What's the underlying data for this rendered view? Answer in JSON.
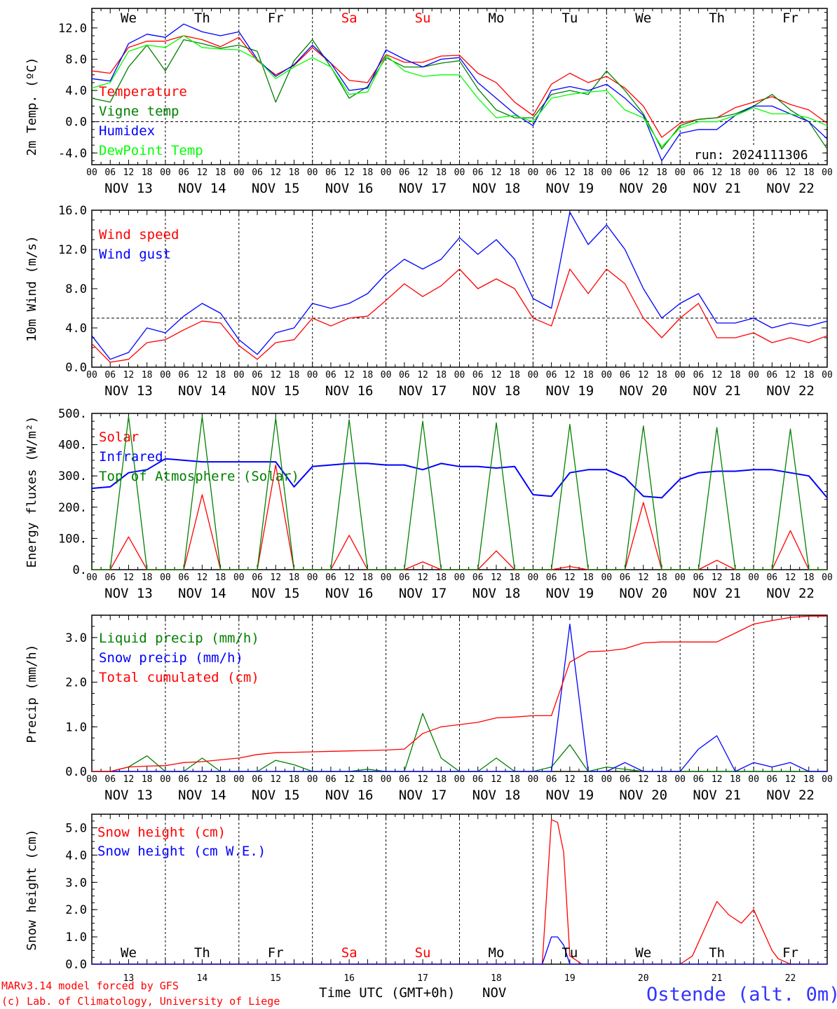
{
  "days": [
    "We",
    "Th",
    "Fr",
    "Sa",
    "Su",
    "Mo",
    "Tu",
    "We",
    "Th",
    "Fr"
  ],
  "day_colors": [
    "#000000",
    "#000000",
    "#000000",
    "#ff0000",
    "#ff0000",
    "#000000",
    "#000000",
    "#000000",
    "#000000",
    "#000000"
  ],
  "date_labels": [
    "NOV 13",
    "NOV 14",
    "NOV 15",
    "NOV 16",
    "NOV 17",
    "NOV 18",
    "NOV 19",
    "NOV 20",
    "NOV 21",
    "NOV 22"
  ],
  "day_numbers": [
    "13",
    "14",
    "15",
    "16",
    "17",
    "18",
    "19",
    "20",
    "21",
    "22"
  ],
  "hour_ticks": [
    "00",
    "06",
    "12",
    "18"
  ],
  "footer": {
    "credit_line1": "MARv3.14 model forced by GFS",
    "credit_line2": "(c) Lab. of Climatology, University of Liege",
    "time_axis": "Time UTC (GMT+0h)",
    "month": "NOV",
    "station": "Ostende (alt. 0m)"
  },
  "chart_data": [
    {
      "type": "line",
      "ylabel": "2m Temp. (ºC)",
      "ylim": [
        -5.5,
        14.5
      ],
      "yticks": [
        "12.0",
        "8.0",
        "4.0",
        "0.0",
        "-4.0"
      ],
      "ytick_values": [
        12,
        8,
        4,
        0,
        -4
      ],
      "reference_line": 0,
      "annotation": "run: 2024111306",
      "x_hours_from_nov13_00": [
        0,
        6,
        12,
        18,
        24,
        30,
        36,
        42,
        48,
        54,
        60,
        66,
        72,
        78,
        84,
        90,
        96,
        102,
        108,
        114,
        120,
        126,
        132,
        138,
        144,
        150,
        156,
        162,
        168,
        174,
        180,
        186,
        192,
        198,
        204,
        210,
        216,
        222,
        228,
        234,
        240
      ],
      "series": [
        {
          "name": "Temperature",
          "color": "#ff0000",
          "values": [
            6.5,
            6.2,
            9.5,
            10.3,
            10.3,
            11.0,
            10.5,
            9.6,
            10.8,
            7.8,
            6.0,
            7.2,
            9.5,
            7.5,
            5.3,
            5.0,
            8.6,
            7.6,
            7.6,
            8.4,
            8.5,
            6.2,
            5.0,
            2.5,
            0.8,
            4.8,
            6.2,
            5.0,
            5.8,
            4.3,
            2.0,
            -2.0,
            -0.2,
            0.3,
            0.5,
            1.8,
            2.5,
            3.2,
            2.2,
            1.5,
            -0.2
          ]
        },
        {
          "name": "Vigne temp",
          "color": "#008000",
          "values": [
            3.0,
            2.5,
            7.0,
            9.8,
            6.5,
            10.5,
            10.0,
            9.4,
            9.8,
            9.0,
            2.5,
            7.8,
            10.5,
            7.0,
            3.0,
            4.5,
            8.2,
            7.0,
            7.0,
            7.5,
            7.8,
            4.2,
            1.5,
            0.5,
            0.5,
            3.5,
            4.0,
            3.5,
            6.5,
            4.0,
            1.0,
            -3.5,
            -0.5,
            0.3,
            0.5,
            1.0,
            2.0,
            3.5,
            1.5,
            0.0,
            -3.5
          ]
        },
        {
          "name": "Humidex",
          "color": "#0000ff",
          "values": [
            5.5,
            5.2,
            10.0,
            11.2,
            10.8,
            12.5,
            11.5,
            11.0,
            11.5,
            8.0,
            5.8,
            7.3,
            9.8,
            7.5,
            4.0,
            4.3,
            9.2,
            8.0,
            7.0,
            8.0,
            8.2,
            5.0,
            3.0,
            1.0,
            -0.5,
            4.0,
            4.5,
            4.0,
            4.8,
            3.0,
            0.8,
            -5.0,
            -1.5,
            -1.0,
            -1.0,
            0.8,
            2.0,
            2.0,
            1.0,
            0.0,
            -2.2
          ]
        },
        {
          "name": "DewPoint Temp",
          "color": "#00ff00",
          "values": [
            4.3,
            5.0,
            9.0,
            9.8,
            9.5,
            11.0,
            9.5,
            9.3,
            9.2,
            8.0,
            5.5,
            7.0,
            8.2,
            7.0,
            3.5,
            3.8,
            8.5,
            6.5,
            5.8,
            6.0,
            6.0,
            3.0,
            0.5,
            0.8,
            0.0,
            3.0,
            3.5,
            3.8,
            4.0,
            1.5,
            0.5,
            -3.2,
            -0.8,
            0.0,
            0.0,
            0.8,
            1.8,
            1.0,
            1.0,
            0.5,
            -0.5
          ]
        }
      ]
    },
    {
      "type": "line",
      "ylabel": "10m Wind (m/s)",
      "ylim": [
        0,
        16
      ],
      "yticks": [
        "16.0",
        "12.0",
        "8.0",
        "4.0",
        "0.0"
      ],
      "ytick_values": [
        16,
        12,
        8,
        4,
        0
      ],
      "reference_line": 5,
      "x_hours_from_nov13_00": [
        0,
        6,
        12,
        18,
        24,
        30,
        36,
        42,
        48,
        54,
        60,
        66,
        72,
        78,
        84,
        90,
        96,
        102,
        108,
        114,
        120,
        126,
        132,
        138,
        144,
        150,
        156,
        162,
        168,
        174,
        180,
        186,
        192,
        198,
        204,
        210,
        216,
        222,
        228,
        234,
        240
      ],
      "series": [
        {
          "name": "Wind speed",
          "color": "#ff0000",
          "values": [
            2.4,
            0.5,
            0.8,
            2.5,
            2.8,
            3.8,
            4.7,
            4.5,
            2.2,
            0.8,
            2.5,
            2.8,
            5.0,
            4.2,
            5.0,
            5.2,
            6.8,
            8.5,
            7.2,
            8.3,
            10.0,
            8.0,
            9.0,
            8.0,
            5.0,
            4.2,
            10.0,
            7.5,
            10.0,
            8.5,
            5.0,
            3.0,
            5.0,
            6.5,
            3.0,
            3.0,
            3.5,
            2.5,
            3.0,
            2.5,
            3.2
          ]
        },
        {
          "name": "Wind gust",
          "color": "#0000ff",
          "values": [
            3.2,
            0.8,
            1.5,
            4.0,
            3.5,
            5.2,
            6.5,
            5.5,
            2.8,
            1.3,
            3.5,
            4.0,
            6.5,
            6.0,
            6.5,
            7.5,
            9.5,
            11.0,
            10.0,
            11.0,
            13.2,
            11.5,
            13.0,
            11.0,
            7.0,
            6.0,
            15.8,
            12.5,
            14.5,
            12.0,
            8.0,
            5.0,
            6.5,
            7.5,
            4.5,
            4.5,
            5.0,
            4.0,
            4.5,
            4.2,
            4.7
          ]
        }
      ]
    },
    {
      "type": "line",
      "ylabel": "Energy fluxes (W/m²)",
      "ylim": [
        0,
        500
      ],
      "yticks": [
        "500.",
        "400.",
        "300.",
        "200.",
        "100.",
        "0."
      ],
      "ytick_values": [
        500,
        400,
        300,
        200,
        100,
        0
      ],
      "x_hours_from_nov13_00": [
        0,
        6,
        12,
        18,
        24,
        30,
        36,
        42,
        48,
        54,
        60,
        66,
        72,
        78,
        84,
        90,
        96,
        102,
        108,
        114,
        120,
        126,
        132,
        138,
        144,
        150,
        156,
        162,
        168,
        174,
        180,
        186,
        192,
        198,
        204,
        210,
        216,
        222,
        228,
        234,
        240
      ],
      "series": [
        {
          "name": "Solar",
          "color": "#ff0000",
          "values": [
            0,
            0,
            105,
            0,
            0,
            0,
            240,
            0,
            0,
            0,
            335,
            0,
            0,
            0,
            110,
            0,
            0,
            0,
            25,
            0,
            0,
            0,
            60,
            0,
            0,
            0,
            10,
            0,
            0,
            0,
            215,
            0,
            0,
            0,
            30,
            0,
            0,
            0,
            125,
            0,
            0
          ]
        },
        {
          "name": "Infrared",
          "color": "#0000ff",
          "values": [
            260,
            265,
            310,
            320,
            355,
            350,
            345,
            345,
            345,
            345,
            345,
            265,
            330,
            335,
            340,
            340,
            335,
            335,
            320,
            340,
            330,
            330,
            325,
            330,
            240,
            235,
            310,
            320,
            320,
            295,
            235,
            230,
            290,
            310,
            315,
            315,
            320,
            320,
            310,
            300,
            230
          ]
        },
        {
          "name": "Top of Atmosphere (Solar)",
          "color": "#008000",
          "values": [
            0,
            0,
            490,
            0,
            0,
            0,
            490,
            0,
            0,
            0,
            485,
            0,
            0,
            0,
            480,
            0,
            0,
            0,
            475,
            0,
            0,
            0,
            470,
            0,
            0,
            0,
            465,
            0,
            0,
            0,
            460,
            0,
            0,
            0,
            455,
            0,
            0,
            0,
            450,
            0,
            0
          ]
        }
      ]
    },
    {
      "type": "line",
      "ylabel": "Precip (mm/h)",
      "ylim": [
        0,
        3.5
      ],
      "yticks": [
        "3.0",
        "2.0",
        "1.0",
        "0.0"
      ],
      "ytick_values": [
        3,
        2,
        1,
        0
      ],
      "x_hours_from_nov13_00": [
        0,
        6,
        12,
        18,
        24,
        30,
        36,
        42,
        48,
        54,
        60,
        66,
        72,
        78,
        84,
        90,
        96,
        102,
        108,
        114,
        120,
        126,
        132,
        138,
        144,
        150,
        156,
        162,
        168,
        174,
        180,
        186,
        192,
        198,
        204,
        210,
        216,
        222,
        228,
        234,
        240
      ],
      "series": [
        {
          "name": "Liquid precip (mm/h)",
          "color": "#008000",
          "values": [
            0,
            0,
            0.1,
            0.35,
            0,
            0,
            0.3,
            0,
            0,
            0,
            0.25,
            0.15,
            0,
            0,
            0,
            0.05,
            0,
            0,
            1.3,
            0.3,
            0,
            0,
            0.3,
            0,
            0,
            0.1,
            0.6,
            0,
            0.1,
            0.05,
            0,
            0,
            0,
            0,
            0,
            0,
            0,
            0,
            0,
            0,
            0
          ]
        },
        {
          "name": "Snow precip (mm/h)",
          "color": "#0000ff",
          "values": [
            0,
            0,
            0,
            0,
            0,
            0,
            0,
            0,
            0,
            0,
            0,
            0,
            0,
            0,
            0,
            0,
            0,
            0,
            0,
            0,
            0,
            0,
            0,
            0,
            0,
            0,
            3.3,
            0,
            0,
            0.2,
            0,
            0,
            0,
            0.5,
            0.8,
            0,
            0.2,
            0.1,
            0.2,
            0,
            0
          ]
        },
        {
          "name": "Total cumulated (cm)",
          "color": "#ff0000",
          "values": [
            0,
            0,
            0.1,
            0.12,
            0.13,
            0.2,
            0.22,
            0.26,
            0.3,
            0.38,
            0.42,
            0.43,
            0.44,
            0.45,
            0.46,
            0.47,
            0.48,
            0.5,
            0.85,
            1.0,
            1.05,
            1.1,
            1.2,
            1.22,
            1.25,
            1.25,
            2.45,
            2.68,
            2.7,
            2.75,
            2.88,
            2.9,
            2.9,
            2.9,
            2.9,
            3.1,
            3.3,
            3.38,
            3.45,
            3.48,
            3.48
          ]
        }
      ]
    },
    {
      "type": "line",
      "ylabel": "Snow height (cm)",
      "ylim": [
        0,
        5.5
      ],
      "yticks": [
        "5.0",
        "4.0",
        "3.0",
        "2.0",
        "1.0",
        "0.0"
      ],
      "ytick_values": [
        5,
        4,
        3,
        2,
        1,
        0
      ],
      "x_hours_from_nov13_00": [
        0,
        24,
        48,
        72,
        96,
        120,
        140,
        144,
        147,
        150,
        152,
        154,
        156,
        160,
        168,
        176,
        192,
        196,
        200,
        204,
        208,
        212,
        216,
        220,
        222,
        224,
        228,
        240
      ],
      "series": [
        {
          "name": "Snow height (cm)",
          "color": "#ff0000",
          "values": [
            0,
            0,
            0,
            0,
            0,
            0,
            0,
            0,
            0,
            5.3,
            5.2,
            4.1,
            0.3,
            0,
            0,
            0,
            0,
            0.3,
            1.3,
            2.3,
            1.8,
            1.5,
            2.0,
            1.0,
            0.5,
            0.2,
            0,
            0
          ]
        },
        {
          "name": "Snow height (cm W.E.)",
          "color": "#0000ff",
          "values": [
            0,
            0,
            0,
            0,
            0,
            0,
            0,
            0,
            0,
            1.0,
            1.0,
            0.7,
            0,
            0,
            0,
            0,
            0,
            0,
            0,
            0,
            0,
            0,
            0,
            0,
            0,
            0,
            0,
            0
          ]
        }
      ]
    }
  ]
}
